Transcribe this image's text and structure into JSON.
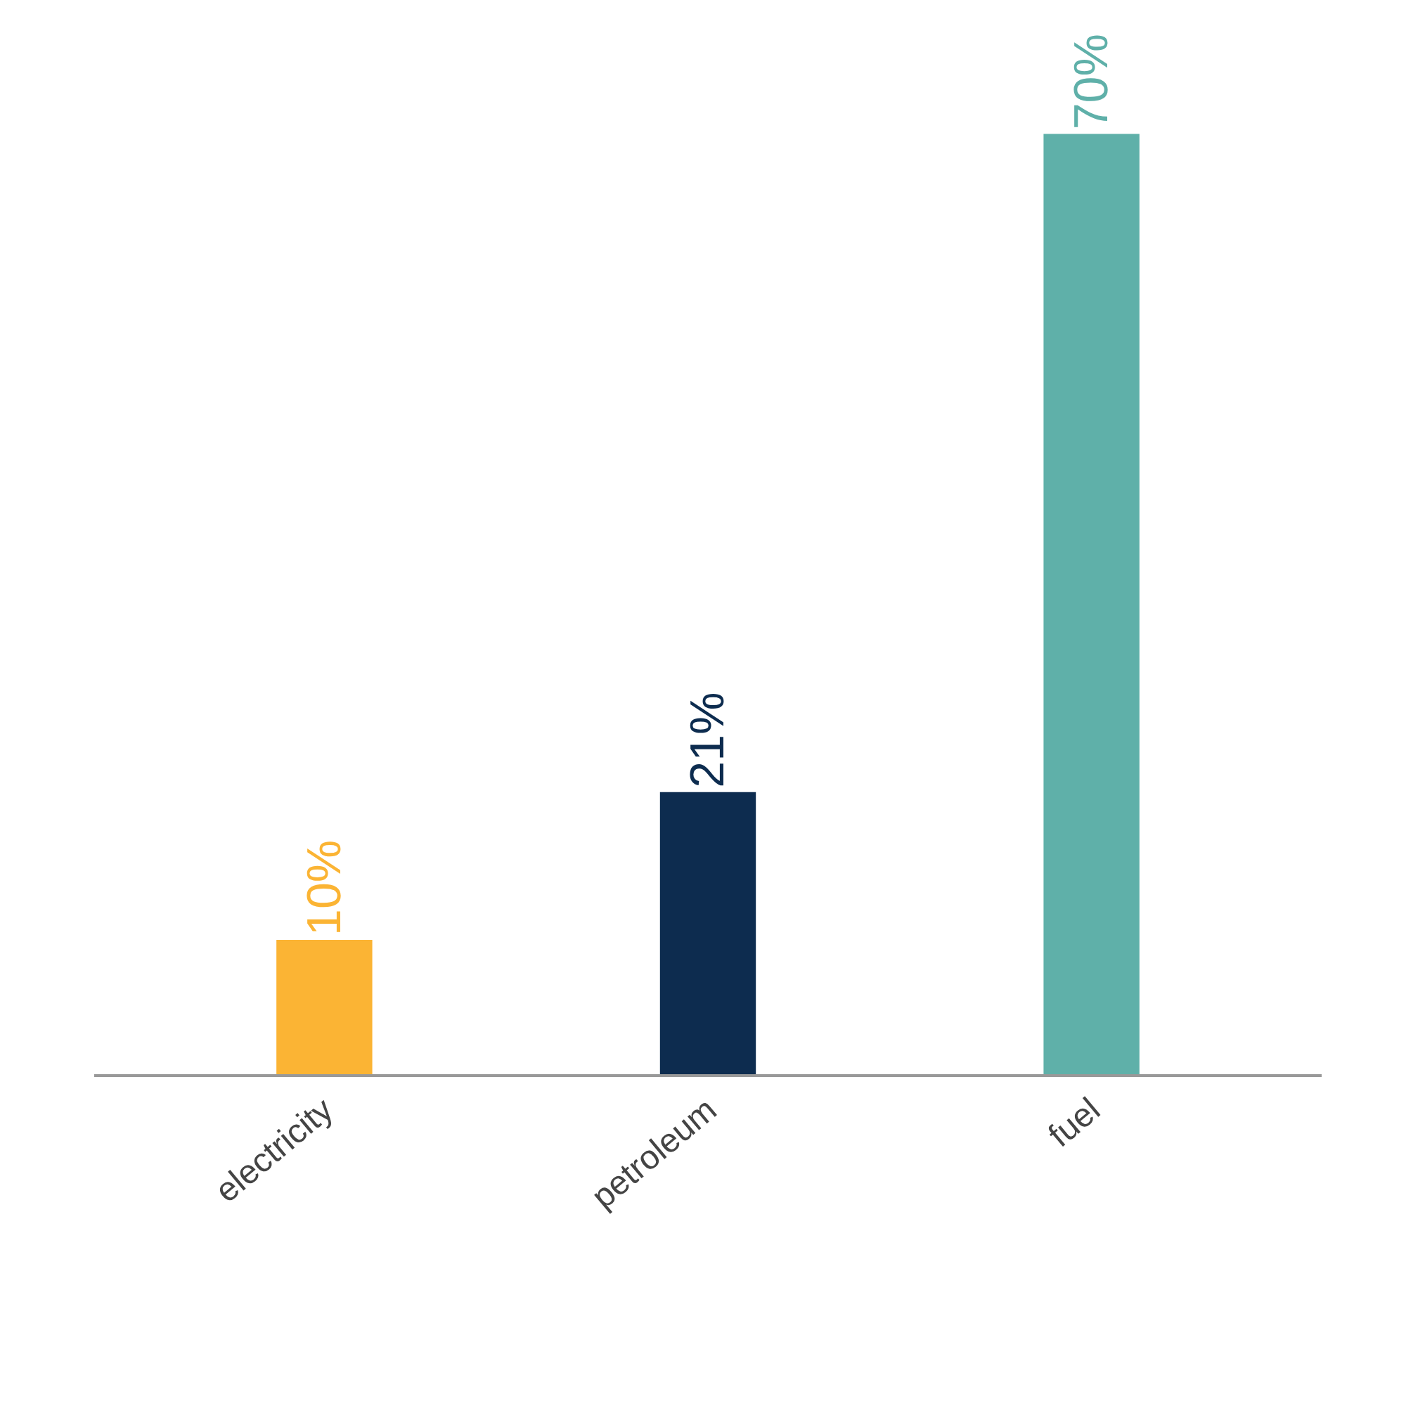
{
  "chart_data": {
    "type": "bar",
    "categories": [
      "electricity",
      "petroleum",
      "fuel"
    ],
    "values": [
      10,
      21,
      70
    ],
    "colors": [
      "#fbb434",
      "#0d2c4f",
      "#5fb0a9"
    ],
    "value_labels": [
      "10%",
      "21%",
      "70%"
    ],
    "grid": false,
    "legend": false
  }
}
